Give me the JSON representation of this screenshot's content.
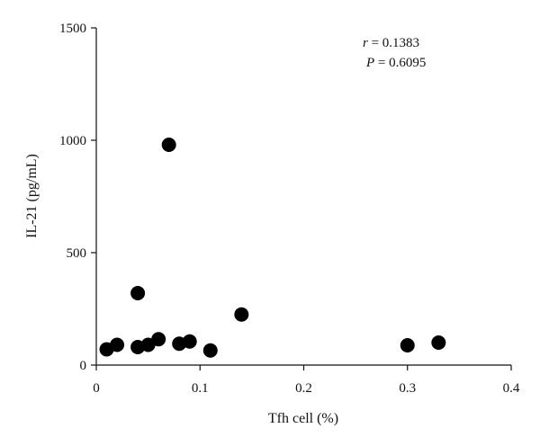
{
  "chart_data": {
    "type": "scatter",
    "title": "",
    "xlabel": "Tfh cell (%)",
    "ylabel": "IL-21 (pg/mL)",
    "xlim": [
      0,
      0.4
    ],
    "ylim": [
      0,
      1500
    ],
    "xticks": [
      0,
      0.1,
      0.2,
      0.3,
      0.4
    ],
    "xtick_labels": [
      "0",
      "0.1",
      "0.2",
      "0.3",
      "0.4"
    ],
    "yticks": [
      0,
      500,
      1000,
      1500
    ],
    "ytick_labels": [
      "0",
      "500",
      "1000",
      "1500"
    ],
    "grid": false,
    "marker_color": "#000000",
    "points": [
      {
        "x": 0.01,
        "y": 70
      },
      {
        "x": 0.02,
        "y": 90
      },
      {
        "x": 0.04,
        "y": 320
      },
      {
        "x": 0.04,
        "y": 80
      },
      {
        "x": 0.05,
        "y": 90
      },
      {
        "x": 0.06,
        "y": 115
      },
      {
        "x": 0.07,
        "y": 980
      },
      {
        "x": 0.08,
        "y": 95
      },
      {
        "x": 0.09,
        "y": 105
      },
      {
        "x": 0.11,
        "y": 65
      },
      {
        "x": 0.14,
        "y": 225
      },
      {
        "x": 0.3,
        "y": 88
      },
      {
        "x": 0.33,
        "y": 100
      }
    ],
    "annotations": {
      "r_symbol": "r",
      "r_value": " = 0.1383",
      "p_symbol": "P",
      "p_value": " = 0.6095"
    }
  }
}
